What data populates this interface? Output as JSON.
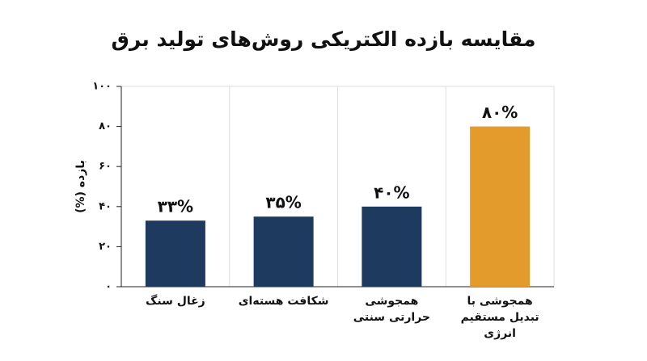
{
  "chart_data": {
    "type": "bar",
    "title": "مقایسه بازده الکتریکی روش‌های تولید برق",
    "y_label": "بازده (%)",
    "categories": [
      "زغال سنگ",
      "شکافت هسته‌ای",
      "همجوشی حرارتی سنتی",
      "همجوشی با تبدیل مستقیم انرژی"
    ],
    "values": [
      33,
      35,
      40,
      80
    ],
    "value_labels": [
      "۳۳%",
      "۳۵%",
      "۴۰%",
      "۸۰%"
    ],
    "colors": [
      "#1e3a5f",
      "#1e3a5f",
      "#1e3a5f",
      "#e39b2c"
    ],
    "ylim": [
      0,
      100
    ],
    "yticks": [
      {
        "value": 0,
        "label": "۰"
      },
      {
        "value": 20,
        "label": "۲۰"
      },
      {
        "value": 40,
        "label": "۴۰"
      },
      {
        "value": 60,
        "label": "۶۰"
      },
      {
        "value": 80,
        "label": "۸۰"
      },
      {
        "value": 100,
        "label": "۱۰۰"
      }
    ],
    "grid": true
  }
}
